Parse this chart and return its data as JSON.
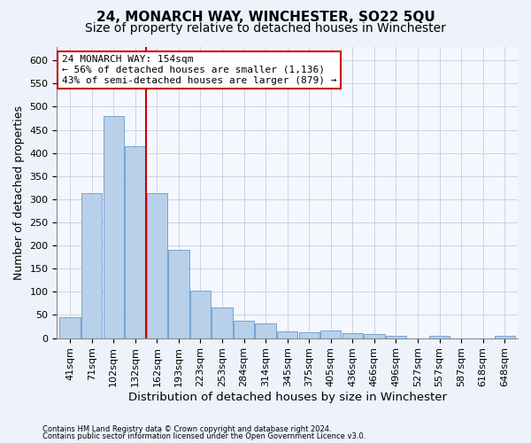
{
  "title1": "24, MONARCH WAY, WINCHESTER, SO22 5QU",
  "title2": "Size of property relative to detached houses in Winchester",
  "xlabel": "Distribution of detached houses by size in Winchester",
  "ylabel": "Number of detached properties",
  "categories": [
    "41sqm",
    "71sqm",
    "102sqm",
    "132sqm",
    "162sqm",
    "193sqm",
    "223sqm",
    "253sqm",
    "284sqm",
    "314sqm",
    "345sqm",
    "375sqm",
    "405sqm",
    "436sqm",
    "466sqm",
    "496sqm",
    "527sqm",
    "557sqm",
    "587sqm",
    "618sqm",
    "648sqm"
  ],
  "values": [
    46,
    313,
    480,
    415,
    313,
    190,
    103,
    67,
    38,
    31,
    15,
    13,
    16,
    10,
    8,
    5,
    0,
    5,
    0,
    0,
    5
  ],
  "bar_color": "#b8d0ea",
  "bar_edge_color": "#6699cc",
  "vline_color": "#cc0000",
  "annotation_text1": "24 MONARCH WAY: 154sqm",
  "annotation_text2": "← 56% of detached houses are smaller (1,136)",
  "annotation_text3": "43% of semi-detached houses are larger (879) →",
  "annotation_box_color": "white",
  "annotation_box_edge": "#cc0000",
  "ylim": [
    0,
    630
  ],
  "yticks": [
    0,
    50,
    100,
    150,
    200,
    250,
    300,
    350,
    400,
    450,
    500,
    550,
    600
  ],
  "footer1": "Contains HM Land Registry data © Crown copyright and database right 2024.",
  "footer2": "Contains public sector information licensed under the Open Government Licence v3.0.",
  "bg_color": "#eef2fa",
  "plot_bg_color": "#f5f7fe",
  "grid_color": "#c8d4e8",
  "title1_fontsize": 11,
  "title2_fontsize": 10,
  "xlabel_fontsize": 9.5,
  "ylabel_fontsize": 9,
  "tick_fontsize": 8,
  "annot_fontsize": 8
}
